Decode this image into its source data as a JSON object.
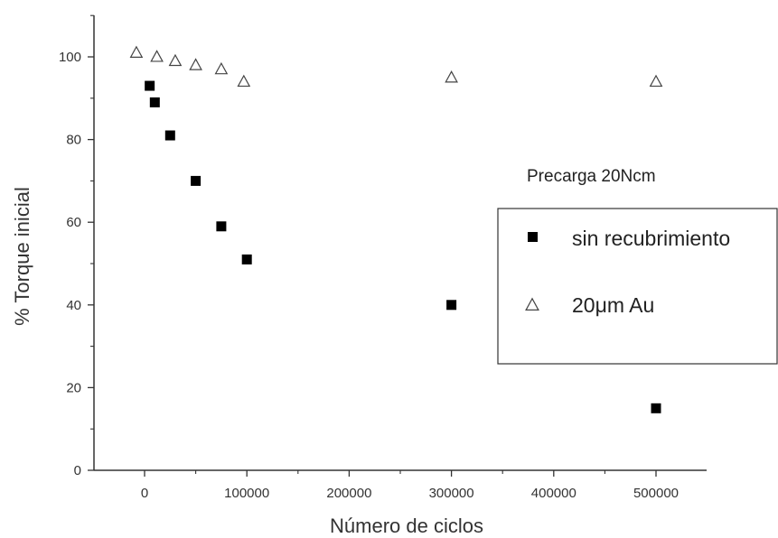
{
  "chart_data": {
    "type": "scatter",
    "title": "",
    "xlabel": "Número de ciclos",
    "ylabel": "% Torque inicial",
    "xlim": [
      -50000,
      550000
    ],
    "ylim": [
      0,
      110
    ],
    "x_ticks": [
      0,
      100000,
      200000,
      300000,
      400000,
      500000
    ],
    "x_tick_labels": [
      "0",
      "100000",
      "200000",
      "300000",
      "400000",
      "500000"
    ],
    "y_ticks": [
      0,
      20,
      40,
      60,
      80,
      100
    ],
    "y_tick_labels": [
      "0",
      "20",
      "40",
      "60",
      "80",
      "100"
    ],
    "grid": false,
    "annotation": "Precarga 20Ncm",
    "legend_position": "right",
    "series": [
      {
        "name": "sin recubrimiento",
        "marker": "filled-square",
        "color": "#000000",
        "points": [
          {
            "x": 5000,
            "y": 93
          },
          {
            "x": 10000,
            "y": 89
          },
          {
            "x": 25000,
            "y": 81
          },
          {
            "x": 50000,
            "y": 70
          },
          {
            "x": 75000,
            "y": 59
          },
          {
            "x": 100000,
            "y": 51
          },
          {
            "x": 300000,
            "y": 40
          },
          {
            "x": 500000,
            "y": 15
          }
        ]
      },
      {
        "name": "20μm Au",
        "marker": "open-triangle",
        "color": "#444444",
        "points": [
          {
            "x": -8000,
            "y": 101
          },
          {
            "x": 12000,
            "y": 100
          },
          {
            "x": 30000,
            "y": 99
          },
          {
            "x": 50000,
            "y": 98
          },
          {
            "x": 75000,
            "y": 97
          },
          {
            "x": 97000,
            "y": 94
          },
          {
            "x": 300000,
            "y": 95
          },
          {
            "x": 500000,
            "y": 94
          }
        ]
      }
    ]
  }
}
